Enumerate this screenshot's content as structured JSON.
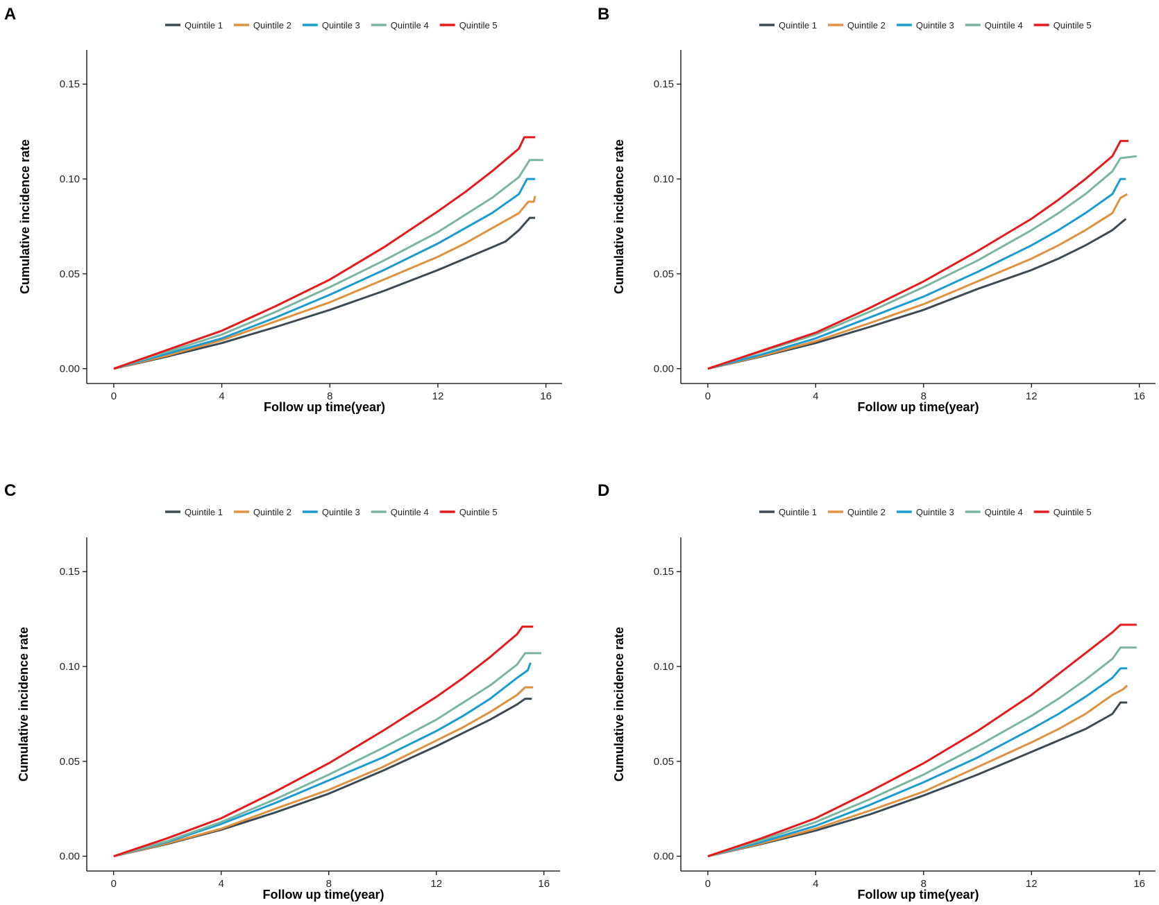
{
  "chart_data": [
    {
      "panel": "A",
      "type": "line",
      "xlabel": "Follow up time(year)",
      "ylabel": "Cumulative incidence rate",
      "xlim": [
        -1.0,
        16.6
      ],
      "ylim": [
        -0.0078,
        0.168
      ],
      "xticks": [
        0,
        4,
        8,
        12,
        16
      ],
      "xtick_labels": [
        "0",
        "4",
        "8",
        "12",
        "16"
      ],
      "yticks": [
        0.0,
        0.05,
        0.1,
        0.15
      ],
      "ytick_labels": [
        "0.00",
        "0.05",
        "0.10",
        "0.15"
      ],
      "grid": false,
      "legend_position": "top",
      "series": [
        {
          "name": "Quintile 1",
          "color": "#3b4a53",
          "x": [
            0,
            2,
            4,
            6,
            8,
            10,
            12,
            13,
            14,
            14.5,
            15,
            15.4,
            15.6
          ],
          "y": [
            0,
            0.0065,
            0.0135,
            0.022,
            0.031,
            0.041,
            0.052,
            0.058,
            0.064,
            0.067,
            0.073,
            0.0795,
            0.0795
          ]
        },
        {
          "name": "Quintile 2",
          "color": "#e0913f",
          "x": [
            0,
            2,
            4,
            6,
            8,
            10,
            12,
            13,
            14,
            15,
            15.35,
            15.55,
            15.6
          ],
          "y": [
            0,
            0.007,
            0.015,
            0.025,
            0.035,
            0.047,
            0.059,
            0.066,
            0.074,
            0.082,
            0.088,
            0.088,
            0.091
          ]
        },
        {
          "name": "Quintile 3",
          "color": "#1a9bd1",
          "x": [
            0,
            2,
            4,
            6,
            8,
            10,
            12,
            13,
            14,
            15,
            15.3,
            15.6
          ],
          "y": [
            0,
            0.008,
            0.016,
            0.027,
            0.039,
            0.052,
            0.066,
            0.074,
            0.082,
            0.092,
            0.1,
            0.1
          ]
        },
        {
          "name": "Quintile 4",
          "color": "#7ab5a0",
          "x": [
            0,
            2,
            4,
            6,
            8,
            10,
            12,
            13,
            14,
            15,
            15.4,
            15.9
          ],
          "y": [
            0,
            0.009,
            0.018,
            0.03,
            0.043,
            0.057,
            0.072,
            0.081,
            0.09,
            0.101,
            0.11,
            0.11
          ]
        },
        {
          "name": "Quintile 5",
          "color": "#e41a1c",
          "x": [
            0,
            2,
            4,
            6,
            8,
            10,
            12,
            13,
            14,
            15,
            15.2,
            15.6
          ],
          "y": [
            0,
            0.01,
            0.02,
            0.033,
            0.047,
            0.064,
            0.083,
            0.093,
            0.104,
            0.116,
            0.122,
            0.122
          ]
        }
      ]
    },
    {
      "panel": "B",
      "type": "line",
      "xlabel": "Follow up time(year)",
      "ylabel": "Cumulative incidence rate",
      "xlim": [
        -1.0,
        16.6
      ],
      "ylim": [
        -0.0078,
        0.168
      ],
      "xticks": [
        0,
        4,
        8,
        12,
        16
      ],
      "xtick_labels": [
        "0",
        "4",
        "8",
        "12",
        "16"
      ],
      "yticks": [
        0.0,
        0.05,
        0.1,
        0.15
      ],
      "ytick_labels": [
        "0.00",
        "0.05",
        "0.10",
        "0.15"
      ],
      "grid": false,
      "legend_position": "top",
      "series": [
        {
          "name": "Quintile 1",
          "color": "#3b4a53",
          "x": [
            0,
            2,
            4,
            6,
            8,
            10,
            12,
            13,
            14,
            15,
            15.5
          ],
          "y": [
            0,
            0.0065,
            0.0135,
            0.022,
            0.031,
            0.042,
            0.052,
            0.058,
            0.065,
            0.073,
            0.079
          ]
        },
        {
          "name": "Quintile 2",
          "color": "#e0913f",
          "x": [
            0,
            2,
            4,
            6,
            8,
            10,
            12,
            13,
            14,
            15,
            15.3,
            15.55
          ],
          "y": [
            0,
            0.0068,
            0.0145,
            0.024,
            0.034,
            0.046,
            0.058,
            0.065,
            0.073,
            0.082,
            0.09,
            0.092
          ]
        },
        {
          "name": "Quintile 3",
          "color": "#1a9bd1",
          "x": [
            0,
            2,
            4,
            6,
            8,
            10,
            12,
            13,
            14,
            15,
            15.3,
            15.5
          ],
          "y": [
            0,
            0.0075,
            0.016,
            0.027,
            0.038,
            0.051,
            0.065,
            0.073,
            0.082,
            0.092,
            0.1,
            0.1
          ]
        },
        {
          "name": "Quintile 4",
          "color": "#7ab5a0",
          "x": [
            0,
            2,
            4,
            6,
            8,
            10,
            12,
            13,
            14,
            15,
            15.3,
            15.9
          ],
          "y": [
            0,
            0.009,
            0.018,
            0.03,
            0.043,
            0.057,
            0.073,
            0.082,
            0.092,
            0.104,
            0.111,
            0.112
          ]
        },
        {
          "name": "Quintile 5",
          "color": "#e41a1c",
          "x": [
            0,
            2,
            4,
            6,
            8,
            10,
            12,
            13,
            14,
            15,
            15.3,
            15.6
          ],
          "y": [
            0,
            0.0095,
            0.019,
            0.032,
            0.046,
            0.062,
            0.079,
            0.089,
            0.1,
            0.112,
            0.12,
            0.12
          ]
        }
      ]
    },
    {
      "panel": "C",
      "type": "line",
      "xlabel": "Follow up time(year)",
      "ylabel": "Cumulative incidence rate",
      "xlim": [
        -1.0,
        16.6
      ],
      "ylim": [
        -0.0078,
        0.168
      ],
      "xticks": [
        0,
        4,
        8,
        12,
        16
      ],
      "xtick_labels": [
        "0",
        "4",
        "8",
        "12",
        "16"
      ],
      "yticks": [
        0.0,
        0.05,
        0.1,
        0.15
      ],
      "ytick_labels": [
        "0.00",
        "0.05",
        "0.10",
        "0.15"
      ],
      "grid": false,
      "legend_position": "top",
      "series": [
        {
          "name": "Quintile 1",
          "color": "#3b4a53",
          "x": [
            0,
            2,
            4,
            6,
            8,
            10,
            12,
            13,
            14,
            15,
            15.3,
            15.55
          ],
          "y": [
            0,
            0.0065,
            0.014,
            0.023,
            0.033,
            0.045,
            0.058,
            0.065,
            0.072,
            0.08,
            0.083,
            0.083
          ]
        },
        {
          "name": "Quintile 2",
          "color": "#e0913f",
          "x": [
            0,
            2,
            4,
            6,
            8,
            10,
            12,
            13,
            14,
            15,
            15.3,
            15.6
          ],
          "y": [
            0,
            0.0068,
            0.0145,
            0.025,
            0.035,
            0.047,
            0.061,
            0.068,
            0.076,
            0.085,
            0.089,
            0.089
          ]
        },
        {
          "name": "Quintile 3",
          "color": "#1a9bd1",
          "x": [
            0,
            2,
            4,
            6,
            8,
            10,
            12,
            13,
            14,
            15,
            15.4,
            15.5
          ],
          "y": [
            0,
            0.0075,
            0.017,
            0.028,
            0.04,
            0.052,
            0.066,
            0.074,
            0.083,
            0.094,
            0.098,
            0.102
          ]
        },
        {
          "name": "Quintile 4",
          "color": "#7ab5a0",
          "x": [
            0,
            2,
            4,
            6,
            8,
            10,
            12,
            13,
            14,
            15,
            15.3,
            15.9
          ],
          "y": [
            0,
            0.008,
            0.018,
            0.03,
            0.043,
            0.057,
            0.072,
            0.081,
            0.09,
            0.101,
            0.107,
            0.107
          ]
        },
        {
          "name": "Quintile 5",
          "color": "#e41a1c",
          "x": [
            0,
            2,
            4,
            6,
            8,
            10,
            12,
            13,
            14,
            15,
            15.2,
            15.6
          ],
          "y": [
            0,
            0.0095,
            0.02,
            0.034,
            0.049,
            0.066,
            0.084,
            0.094,
            0.105,
            0.117,
            0.121,
            0.121
          ]
        }
      ]
    },
    {
      "panel": "D",
      "type": "line",
      "xlabel": "Follow up time(year)",
      "ylabel": "Cumulative incidence rate",
      "xlim": [
        -1.0,
        16.6
      ],
      "ylim": [
        -0.0078,
        0.168
      ],
      "xticks": [
        0,
        4,
        8,
        12,
        16
      ],
      "xtick_labels": [
        "0",
        "4",
        "8",
        "12",
        "16"
      ],
      "yticks": [
        0.0,
        0.05,
        0.1,
        0.15
      ],
      "ytick_labels": [
        "0.00",
        "0.05",
        "0.10",
        "0.15"
      ],
      "grid": false,
      "legend_position": "top",
      "series": [
        {
          "name": "Quintile 1",
          "color": "#3b4a53",
          "x": [
            0,
            2,
            4,
            6,
            8,
            10,
            12,
            13,
            14,
            15,
            15.3,
            15.55
          ],
          "y": [
            0,
            0.0065,
            0.0135,
            0.022,
            0.032,
            0.043,
            0.055,
            0.061,
            0.067,
            0.075,
            0.081,
            0.081
          ]
        },
        {
          "name": "Quintile 2",
          "color": "#e0913f",
          "x": [
            0,
            2,
            4,
            6,
            8,
            10,
            12,
            13,
            14,
            15,
            15.4,
            15.55
          ],
          "y": [
            0,
            0.0068,
            0.0145,
            0.024,
            0.034,
            0.047,
            0.06,
            0.067,
            0.075,
            0.085,
            0.088,
            0.09
          ]
        },
        {
          "name": "Quintile 3",
          "color": "#1a9bd1",
          "x": [
            0,
            2,
            4,
            6,
            8,
            10,
            12,
            13,
            14,
            15,
            15.3,
            15.55
          ],
          "y": [
            0,
            0.0075,
            0.016,
            0.027,
            0.039,
            0.052,
            0.067,
            0.075,
            0.084,
            0.094,
            0.099,
            0.099
          ]
        },
        {
          "name": "Quintile 4",
          "color": "#7ab5a0",
          "x": [
            0,
            2,
            4,
            6,
            8,
            10,
            12,
            13,
            14,
            15,
            15.3,
            15.9
          ],
          "y": [
            0,
            0.0085,
            0.018,
            0.03,
            0.043,
            0.058,
            0.074,
            0.083,
            0.093,
            0.104,
            0.11,
            0.11
          ]
        },
        {
          "name": "Quintile 5",
          "color": "#e41a1c",
          "x": [
            0,
            2,
            4,
            6,
            8,
            10,
            12,
            13,
            14,
            15,
            15.3,
            15.9
          ],
          "y": [
            0,
            0.0095,
            0.02,
            0.034,
            0.049,
            0.066,
            0.085,
            0.096,
            0.107,
            0.118,
            0.122,
            0.122
          ]
        }
      ]
    }
  ]
}
